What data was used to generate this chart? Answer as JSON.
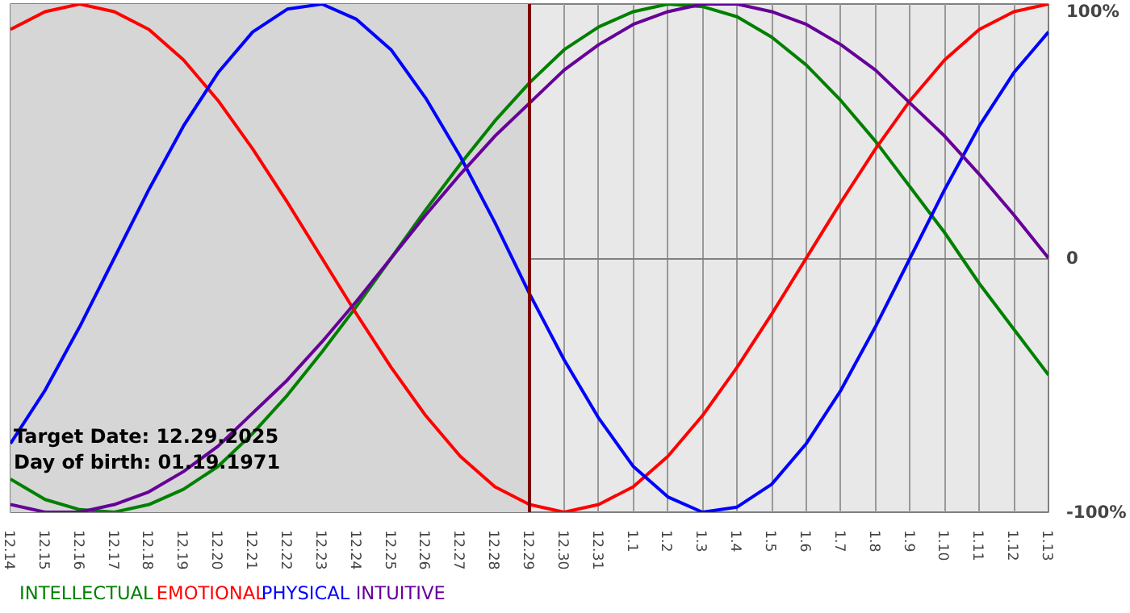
{
  "chart_data": {
    "type": "line",
    "categories": [
      "12.14",
      "12.15",
      "12.16",
      "12.17",
      "12.18",
      "12.19",
      "12.20",
      "12.21",
      "12.22",
      "12.23",
      "12.24",
      "12.25",
      "12.26",
      "12.27",
      "12.28",
      "12.29",
      "12.30",
      "12.31",
      "1.1",
      "1.2",
      "1.3",
      "1.4",
      "1.5",
      "1.6",
      "1.7",
      "1.8",
      "1.9",
      "1.10",
      "1.11",
      "1.12",
      "1.13"
    ],
    "series": [
      {
        "name": "INTELLECTUAL",
        "color": "#008000",
        "values": [
          -87,
          -95,
          -99,
          -100,
          -97,
          -91,
          -82,
          -69,
          -54,
          -37,
          -19,
          0,
          19,
          37,
          54,
          69,
          82,
          91,
          97,
          100,
          99,
          95,
          87,
          76,
          62,
          46,
          28,
          10,
          -10,
          -28,
          -46
        ]
      },
      {
        "name": "EMOTIONAL",
        "color": "#ff0000",
        "values": [
          90,
          97,
          100,
          97,
          90,
          78,
          62,
          43,
          22,
          0,
          -22,
          -43,
          -62,
          -78,
          -90,
          -97,
          -100,
          -97,
          -90,
          -78,
          -62,
          -43,
          -22,
          0,
          22,
          43,
          62,
          78,
          90,
          97,
          100
        ]
      },
      {
        "name": "PHYSICAL",
        "color": "#0000ff",
        "values": [
          -73,
          -52,
          -27,
          0,
          27,
          52,
          73,
          89,
          98,
          100,
          94,
          82,
          63,
          40,
          14,
          -14,
          -40,
          -63,
          -82,
          -94,
          -100,
          -98,
          -89,
          -73,
          -52,
          -27,
          0,
          27,
          52,
          73,
          89
        ]
      },
      {
        "name": "INTUITIVE",
        "color": "#660099",
        "values": [
          -97,
          -100,
          -100,
          -97,
          -92,
          -84,
          -74,
          -61,
          -48,
          -33,
          -17,
          0,
          17,
          33,
          48,
          61,
          74,
          84,
          92,
          97,
          100,
          100,
          97,
          92,
          84,
          74,
          61,
          48,
          33,
          17,
          0
        ]
      }
    ],
    "ylim": [
      -100,
      100
    ],
    "yticks": [
      {
        "value": -100,
        "label": "-100%"
      },
      0,
      {
        "value": 100,
        "label": "100%"
      }
    ],
    "ref_lines": [
      {
        "axis": "x",
        "value": "12.29",
        "color": "#800000"
      }
    ],
    "bands": [
      {
        "axis": "x",
        "from": "12.14",
        "to": "12.29",
        "color": "#d6d6d6"
      }
    ],
    "annotations": [
      "Target Date: 12.29.2025",
      "Day of birth: 01.19.1971"
    ],
    "grid": true
  }
}
